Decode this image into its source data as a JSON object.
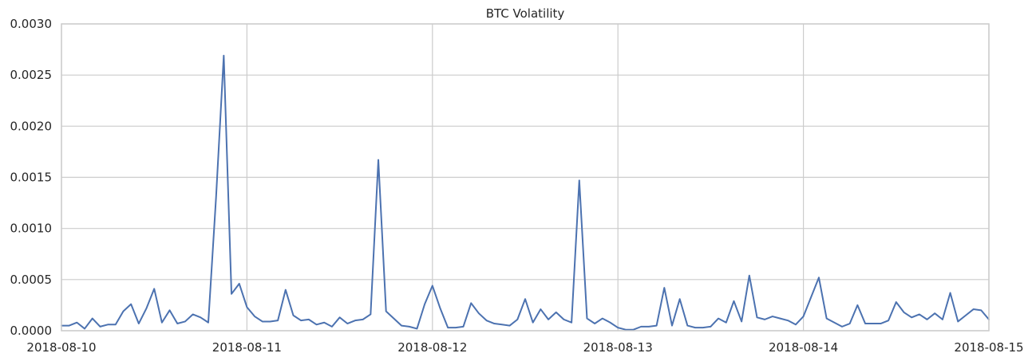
{
  "chart_data": {
    "type": "line",
    "title": "BTC Volatility",
    "xlabel": "",
    "ylabel": "",
    "x_ticks": [
      "2018-08-10",
      "2018-08-11",
      "2018-08-12",
      "2018-08-13",
      "2018-08-14",
      "2018-08-15"
    ],
    "y_ticks": [
      "0.0000",
      "0.0005",
      "0.0010",
      "0.0015",
      "0.0020",
      "0.0025",
      "0.0030"
    ],
    "xlim": [
      "2018-08-10 00:00",
      "2018-08-15 00:00"
    ],
    "ylim": [
      0,
      0.003
    ],
    "grid": true,
    "series": [
      {
        "color": "#4c72b0",
        "x": [
          "2018-08-10 00:00",
          "2018-08-10 01:00",
          "2018-08-10 02:00",
          "2018-08-10 03:00",
          "2018-08-10 04:00",
          "2018-08-10 05:00",
          "2018-08-10 06:00",
          "2018-08-10 07:00",
          "2018-08-10 08:00",
          "2018-08-10 09:00",
          "2018-08-10 10:00",
          "2018-08-10 11:00",
          "2018-08-10 12:00",
          "2018-08-10 13:00",
          "2018-08-10 14:00",
          "2018-08-10 15:00",
          "2018-08-10 16:00",
          "2018-08-10 17:00",
          "2018-08-10 18:00",
          "2018-08-10 19:00",
          "2018-08-10 20:00",
          "2018-08-10 21:00",
          "2018-08-10 22:00",
          "2018-08-10 23:00",
          "2018-08-11 00:00",
          "2018-08-11 01:00",
          "2018-08-11 02:00",
          "2018-08-11 03:00",
          "2018-08-11 04:00",
          "2018-08-11 05:00",
          "2018-08-11 06:00",
          "2018-08-11 07:00",
          "2018-08-11 08:00",
          "2018-08-11 09:00",
          "2018-08-11 10:00",
          "2018-08-11 11:00",
          "2018-08-11 12:00",
          "2018-08-11 13:00",
          "2018-08-11 14:00",
          "2018-08-11 15:00",
          "2018-08-11 16:00",
          "2018-08-11 17:00",
          "2018-08-11 18:00",
          "2018-08-11 19:00",
          "2018-08-11 20:00",
          "2018-08-11 21:00",
          "2018-08-11 22:00",
          "2018-08-11 23:00",
          "2018-08-12 00:00",
          "2018-08-12 01:00",
          "2018-08-12 02:00",
          "2018-08-12 03:00",
          "2018-08-12 04:00",
          "2018-08-12 05:00",
          "2018-08-12 06:00",
          "2018-08-12 07:00",
          "2018-08-12 08:00",
          "2018-08-12 09:00",
          "2018-08-12 10:00",
          "2018-08-12 11:00",
          "2018-08-12 12:00",
          "2018-08-12 13:00",
          "2018-08-12 14:00",
          "2018-08-12 15:00",
          "2018-08-12 16:00",
          "2018-08-12 17:00",
          "2018-08-12 18:00",
          "2018-08-12 19:00",
          "2018-08-12 20:00",
          "2018-08-12 21:00",
          "2018-08-12 22:00",
          "2018-08-12 23:00",
          "2018-08-13 00:00",
          "2018-08-13 01:00",
          "2018-08-13 02:00",
          "2018-08-13 03:00",
          "2018-08-13 04:00",
          "2018-08-13 05:00",
          "2018-08-13 06:00",
          "2018-08-13 07:00",
          "2018-08-13 08:00",
          "2018-08-13 09:00",
          "2018-08-13 10:00",
          "2018-08-13 11:00",
          "2018-08-13 12:00",
          "2018-08-13 13:00",
          "2018-08-13 14:00",
          "2018-08-13 15:00",
          "2018-08-13 16:00",
          "2018-08-13 17:00",
          "2018-08-13 18:00",
          "2018-08-13 19:00",
          "2018-08-13 20:00",
          "2018-08-13 21:00",
          "2018-08-13 22:00",
          "2018-08-13 23:00",
          "2018-08-14 00:00",
          "2018-08-14 01:00",
          "2018-08-14 02:00",
          "2018-08-14 03:00",
          "2018-08-14 04:00",
          "2018-08-14 05:00",
          "2018-08-14 06:00",
          "2018-08-14 07:00",
          "2018-08-14 08:00",
          "2018-08-14 09:00",
          "2018-08-14 10:00",
          "2018-08-14 11:00",
          "2018-08-14 12:00",
          "2018-08-14 13:00",
          "2018-08-14 14:00",
          "2018-08-14 15:00",
          "2018-08-14 16:00",
          "2018-08-14 17:00",
          "2018-08-14 18:00",
          "2018-08-14 19:00",
          "2018-08-14 20:00",
          "2018-08-14 21:00",
          "2018-08-14 22:00",
          "2018-08-14 23:00",
          "2018-08-15 00:00"
        ],
        "y": [
          5e-05,
          5e-05,
          8e-05,
          2e-05,
          0.00012,
          4e-05,
          6e-05,
          6e-05,
          0.00019,
          0.00026,
          7e-05,
          0.00022,
          0.00041,
          8e-05,
          0.0002,
          7e-05,
          9e-05,
          0.00016,
          0.00013,
          8e-05,
          0.0013,
          0.00269,
          0.00036,
          0.00046,
          0.00023,
          0.00014,
          9e-05,
          9e-05,
          0.0001,
          0.0004,
          0.00015,
          0.0001,
          0.00011,
          6e-05,
          8e-05,
          4e-05,
          0.00013,
          7e-05,
          0.0001,
          0.00011,
          0.00016,
          0.00167,
          0.00019,
          0.00012,
          5e-05,
          4e-05,
          2e-05,
          0.00026,
          0.00044,
          0.00022,
          3e-05,
          3e-05,
          4e-05,
          0.00027,
          0.00017,
          0.0001,
          7e-05,
          6e-05,
          5e-05,
          0.00011,
          0.00031,
          8e-05,
          0.00021,
          0.00011,
          0.00018,
          0.00011,
          8e-05,
          0.00147,
          0.00012,
          7e-05,
          0.00012,
          8e-05,
          3e-05,
          1e-05,
          1e-05,
          4e-05,
          4e-05,
          5e-05,
          0.00042,
          5e-05,
          0.00031,
          5e-05,
          3e-05,
          3e-05,
          4e-05,
          0.00012,
          8e-05,
          0.00029,
          9e-05,
          0.00054,
          0.00013,
          0.00011,
          0.00014,
          0.00012,
          0.0001,
          6e-05,
          0.00014,
          0.00033,
          0.00052,
          0.00012,
          8e-05,
          4e-05,
          7e-05,
          0.00025,
          7e-05,
          7e-05,
          7e-05,
          0.0001,
          0.00028,
          0.00018,
          0.00013,
          0.00016,
          0.00011,
          0.00017,
          0.00011,
          0.00037,
          9e-05,
          0.00015,
          0.00021,
          0.0002,
          0.00011
        ]
      }
    ]
  }
}
